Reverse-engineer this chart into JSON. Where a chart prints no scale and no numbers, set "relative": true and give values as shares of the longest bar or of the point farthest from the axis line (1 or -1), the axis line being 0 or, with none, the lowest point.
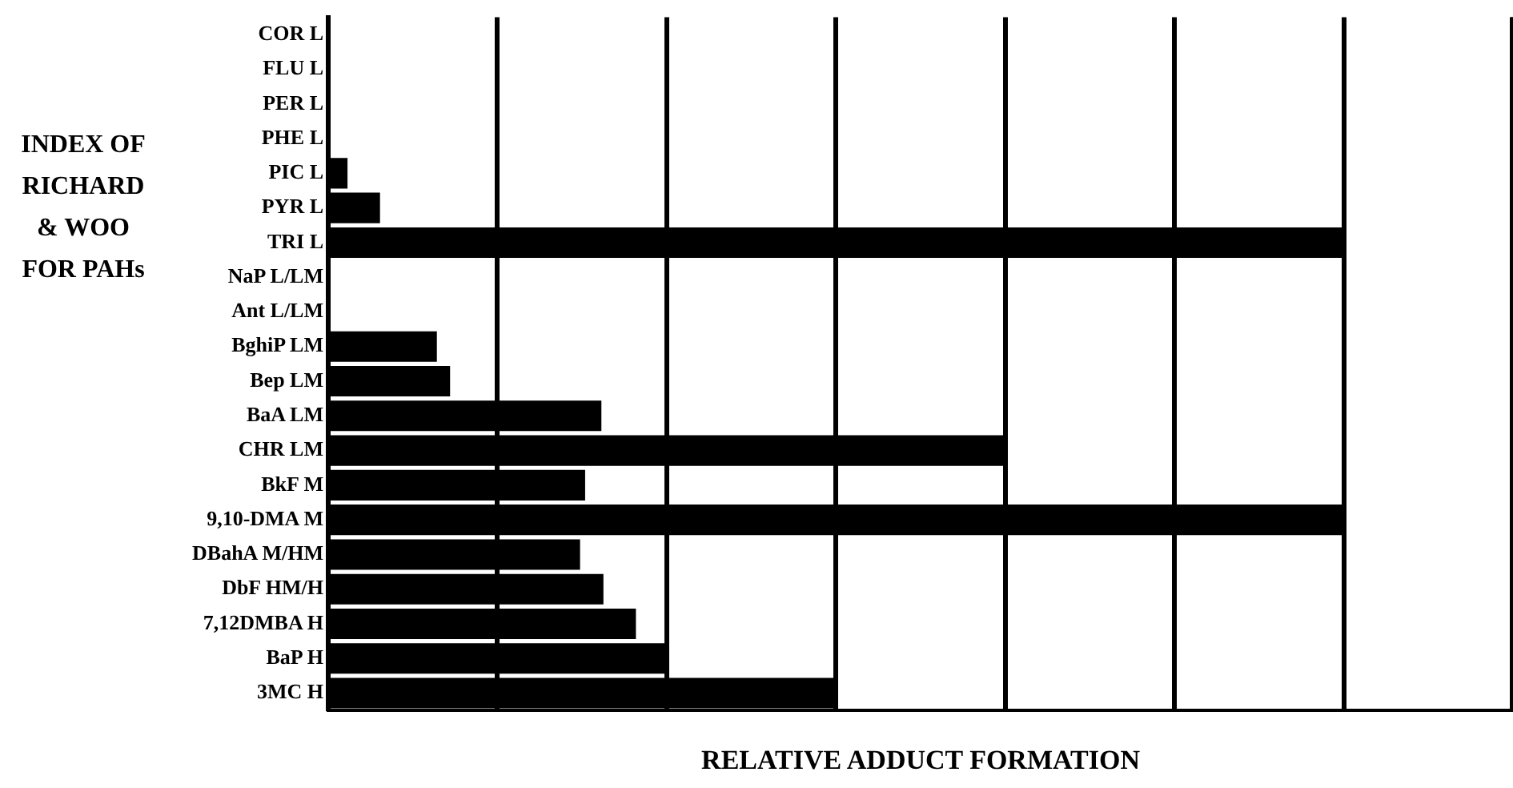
{
  "chart_data": {
    "type": "bar",
    "orientation": "horizontal",
    "relative": true,
    "grid": "x",
    "legend": false,
    "ylabel": "INDEX OF RICHARD & WOO FOR PAHs",
    "xlabel": "RELATIVE ADDUCT FORMATION",
    "categories": [
      "COR L",
      "FLU L",
      "PER L",
      "PHE L",
      "PIC L",
      "PYR L",
      "TRI L",
      "NaP L/LM",
      "Ant L/LM",
      "BghiP LM",
      "Bep LM",
      "BaA LM",
      "CHR LM",
      "BkF M",
      "9,10-DMA M",
      "DBahA M/HM",
      "DbF HM/H",
      "7,12DMBA H",
      "BaP H",
      "3MC H"
    ],
    "color": "#000000",
    "values": [
      0,
      0,
      0,
      0,
      0.019,
      0.051,
      1,
      0,
      0,
      0.107,
      0.12,
      0.269,
      0.667,
      0.253,
      1,
      0.248,
      0.271,
      0.303,
      0.334,
      0.5
    ]
  }
}
